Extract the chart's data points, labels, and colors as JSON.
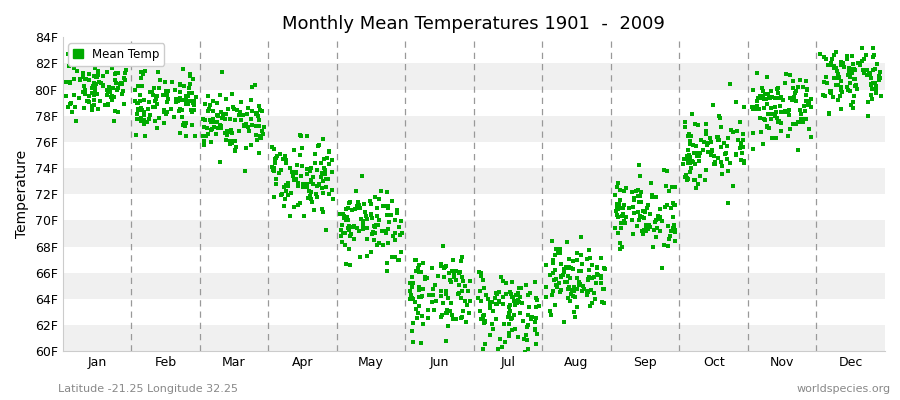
{
  "title": "Monthly Mean Temperatures 1901  -  2009",
  "ylabel": "Temperature",
  "xlabel_labels": [
    "Jan",
    "Feb",
    "Mar",
    "Apr",
    "May",
    "Jun",
    "Jul",
    "Aug",
    "Sep",
    "Oct",
    "Nov",
    "Dec"
  ],
  "ylim": [
    60,
    84
  ],
  "ytick_labels": [
    "60F",
    "62F",
    "64F",
    "66F",
    "68F",
    "70F",
    "72F",
    "74F",
    "76F",
    "78F",
    "80F",
    "82F",
    "84F"
  ],
  "ytick_values": [
    60,
    62,
    64,
    66,
    68,
    70,
    72,
    74,
    76,
    78,
    80,
    82,
    84
  ],
  "marker_color": "#00AA00",
  "legend_label": "Mean Temp",
  "subtitle_left": "Latitude -21.25 Longitude 32.25",
  "subtitle_right": "worldspecies.org",
  "background_color": "#FFFFFF",
  "band_colors": [
    "#F0F0F0",
    "#FFFFFF"
  ],
  "n_years": 109,
  "monthly_mean_temps_F": [
    80.2,
    79.2,
    77.5,
    73.5,
    69.5,
    64.5,
    63.2,
    65.5,
    70.5,
    75.5,
    78.5,
    80.8
  ],
  "monthly_std_F": [
    1.1,
    1.2,
    1.3,
    1.4,
    1.5,
    1.6,
    1.5,
    1.4,
    1.3,
    1.4,
    1.2,
    1.1
  ],
  "marker_size": 5
}
